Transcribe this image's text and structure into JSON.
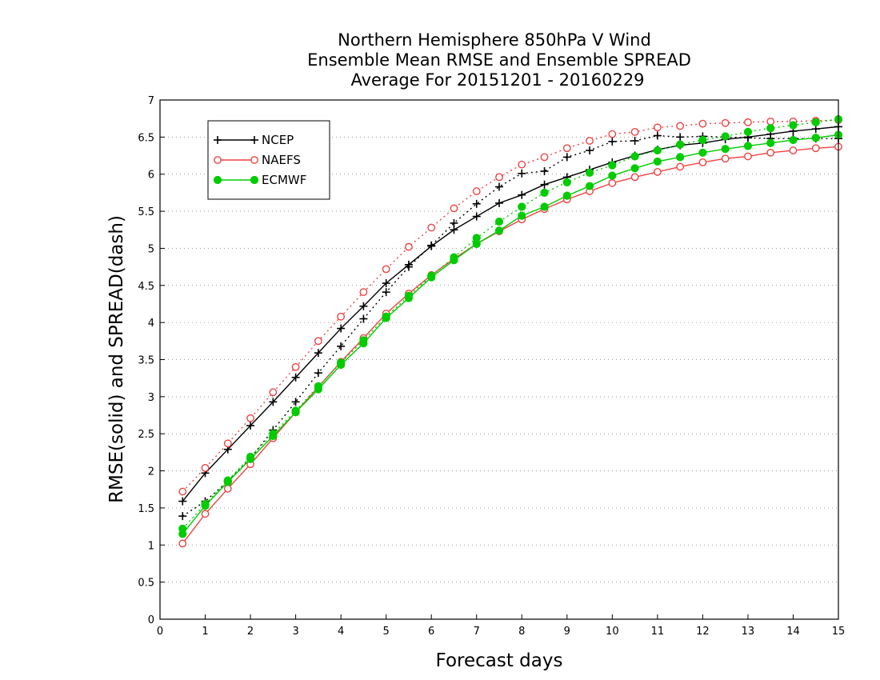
{
  "chart_data": {
    "type": "line",
    "title": [
      "Northern Hemisphere 850hPa V Wind",
      "Ensemble Mean RMSE and Ensemble SPREAD",
      "Average For 20151201 - 20160229"
    ],
    "xlabel": "Forecast days",
    "ylabel": "RMSE(solid) and SPREAD(dash)",
    "xlim": [
      0,
      15
    ],
    "ylim": [
      0,
      7
    ],
    "xticks": [
      "0",
      "1",
      "2",
      "3",
      "4",
      "5",
      "6",
      "7",
      "8",
      "9",
      "10",
      "11",
      "12",
      "13",
      "14",
      "15"
    ],
    "yticks": [
      "0",
      "0.5",
      "1",
      "1.5",
      "2",
      "2.5",
      "3",
      "3.5",
      "4",
      "4.5",
      "5",
      "5.5",
      "6",
      "6.5",
      "7"
    ],
    "grid": "horizontal dotted",
    "legend_position": "top-left",
    "x": [
      0.5,
      1,
      1.5,
      2,
      2.5,
      3,
      3.5,
      4,
      4.5,
      5,
      5.5,
      6,
      6.5,
      7,
      7.5,
      8,
      8.5,
      9,
      9.5,
      10,
      10.5,
      11,
      11.5,
      12,
      12.5,
      13,
      13.5,
      14,
      14.5,
      15
    ],
    "series": [
      {
        "name": "NCEP",
        "measure": "RMSE",
        "style": "solid",
        "color": "#000000",
        "marker": "plus",
        "values": [
          1.59,
          1.97,
          2.29,
          2.61,
          2.93,
          3.26,
          3.59,
          3.92,
          4.22,
          4.53,
          4.78,
          5.03,
          5.25,
          5.43,
          5.61,
          5.72,
          5.86,
          5.96,
          6.06,
          6.16,
          6.25,
          6.33,
          6.39,
          6.42,
          6.47,
          6.5,
          6.54,
          6.58,
          6.61,
          6.64
        ]
      },
      {
        "name": "NCEP",
        "measure": "SPREAD",
        "style": "dash",
        "color": "#000000",
        "marker": "plus",
        "values": [
          1.39,
          1.59,
          1.86,
          2.17,
          2.55,
          2.93,
          3.32,
          3.68,
          4.05,
          4.41,
          4.75,
          5.04,
          5.34,
          5.6,
          5.83,
          6.01,
          6.04,
          6.23,
          6.32,
          6.44,
          6.45,
          6.52,
          6.5,
          6.51,
          6.5,
          6.49,
          6.48,
          6.48,
          6.48,
          6.48
        ]
      },
      {
        "name": "NAEFS",
        "measure": "RMSE",
        "style": "solid",
        "color": "#ee4444",
        "marker": "open-circle",
        "values": [
          1.02,
          1.42,
          1.76,
          2.09,
          2.44,
          2.79,
          3.13,
          3.47,
          3.79,
          4.12,
          4.39,
          4.64,
          4.86,
          5.06,
          5.23,
          5.39,
          5.53,
          5.66,
          5.77,
          5.88,
          5.96,
          6.03,
          6.1,
          6.16,
          6.21,
          6.24,
          6.29,
          6.32,
          6.35,
          6.37
        ]
      },
      {
        "name": "NAEFS",
        "measure": "SPREAD",
        "style": "dash",
        "color": "#ee4444",
        "marker": "open-circle",
        "values": [
          1.72,
          2.04,
          2.37,
          2.71,
          3.06,
          3.4,
          3.75,
          4.08,
          4.41,
          4.72,
          5.02,
          5.28,
          5.54,
          5.77,
          5.96,
          6.13,
          6.23,
          6.35,
          6.45,
          6.54,
          6.57,
          6.63,
          6.65,
          6.68,
          6.69,
          6.7,
          6.71,
          6.71,
          6.72,
          6.73
        ]
      },
      {
        "name": "ECMWF",
        "measure": "RMSE",
        "style": "solid",
        "color": "#00cc00",
        "marker": "filled-circle",
        "values": [
          1.15,
          1.53,
          1.85,
          2.16,
          2.47,
          2.79,
          3.1,
          3.43,
          3.72,
          4.06,
          4.33,
          4.61,
          4.84,
          5.06,
          5.24,
          5.44,
          5.56,
          5.71,
          5.84,
          5.98,
          6.08,
          6.17,
          6.23,
          6.29,
          6.34,
          6.38,
          6.42,
          6.46,
          6.49,
          6.53
        ]
      },
      {
        "name": "ECMWF",
        "measure": "SPREAD",
        "style": "dash",
        "color": "#00cc00",
        "marker": "filled-circle",
        "values": [
          1.22,
          1.55,
          1.87,
          2.19,
          2.5,
          2.81,
          3.14,
          3.46,
          3.76,
          4.08,
          4.36,
          4.63,
          4.88,
          5.14,
          5.36,
          5.56,
          5.75,
          5.89,
          6.02,
          6.12,
          6.24,
          6.32,
          6.4,
          6.46,
          6.51,
          6.57,
          6.62,
          6.66,
          6.7,
          6.74
        ]
      }
    ],
    "legend": [
      {
        "label": "NCEP",
        "color": "#000000",
        "marker": "plus"
      },
      {
        "label": "NAEFS",
        "color": "#ee4444",
        "marker": "open-circle"
      },
      {
        "label": "ECMWF",
        "color": "#00cc00",
        "marker": "filled-circle"
      }
    ]
  }
}
